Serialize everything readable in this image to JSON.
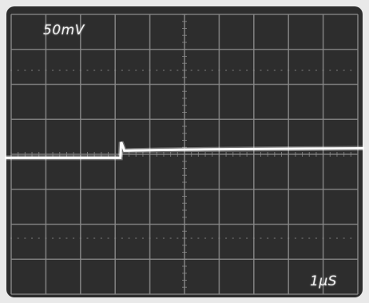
{
  "screen": {
    "volts_per_div_label": "50mV",
    "time_per_div_label": "1μS",
    "divisions": {
      "horizontal": 10,
      "vertical": 8
    },
    "colors": {
      "bezel": "#e9e9e9",
      "screen": "#2d2d2d",
      "graticule": "#8a8a8a",
      "trace": "#fdfdfd"
    }
  },
  "trace": {
    "baseline_level_div": -0.1,
    "step_time_div": 3.15,
    "settled_level_div": 0.15,
    "spike_level_div": 0.35
  }
}
